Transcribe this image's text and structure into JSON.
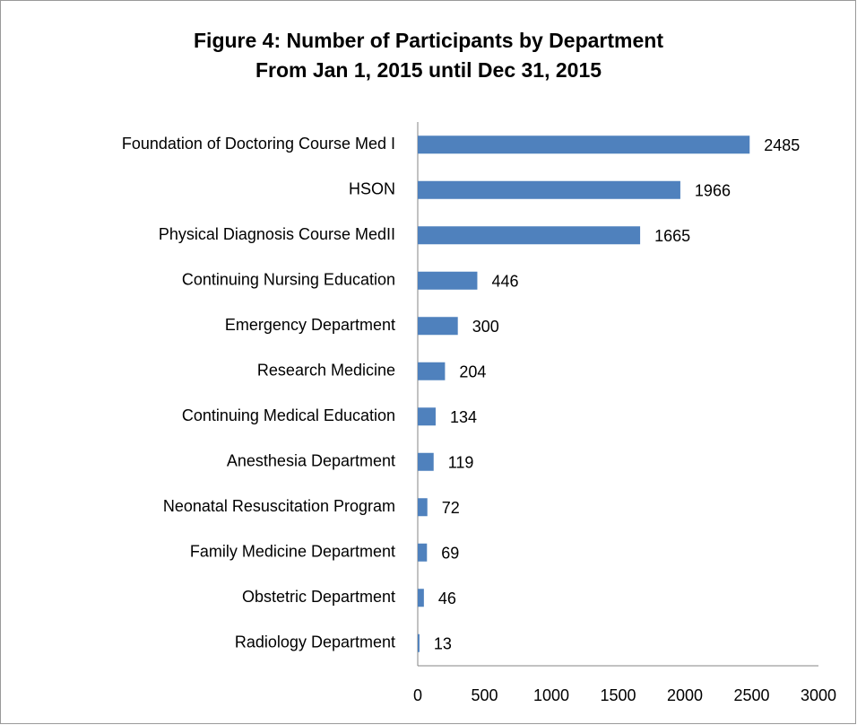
{
  "chart_data": {
    "type": "bar",
    "orientation": "horizontal",
    "title": "Figure 4: Number of Participants by Department",
    "subtitle": "From Jan 1, 2015 until Dec 31, 2015",
    "categories": [
      "Foundation of Doctoring Course Med I",
      "HSON",
      "Physical Diagnosis Course MedII",
      "Continuing Nursing Education",
      "Emergency Department",
      "Research Medicine",
      "Continuing Medical Education",
      "Anesthesia Department",
      "Neonatal Resuscitation Program",
      "Family Medicine Department",
      "Obstetric Department",
      "Radiology Department"
    ],
    "values": [
      2485,
      1966,
      1665,
      446,
      300,
      204,
      134,
      119,
      72,
      69,
      46,
      13
    ],
    "color": "#4f81bd",
    "xlim": [
      0,
      3000
    ],
    "xticks": [
      0,
      500,
      1000,
      1500,
      2000,
      2500,
      3000
    ],
    "grid": false
  }
}
